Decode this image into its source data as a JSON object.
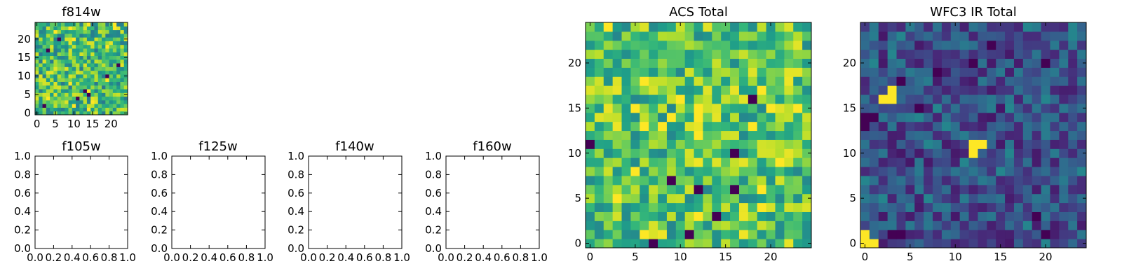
{
  "chart_data": [
    {
      "id": "f814w",
      "type": "heatmap",
      "title": "f814w",
      "colormap": "viridis",
      "grid_size": 25,
      "seed": 11,
      "low_level": 0.68,
      "spread": 0.28,
      "hotspots": [
        [
          3,
          17
        ],
        [
          19,
          10
        ],
        [
          13,
          6
        ],
        [
          14,
          5
        ],
        [
          11,
          4
        ],
        [
          6,
          20
        ],
        [
          2,
          2
        ],
        [
          22,
          13
        ]
      ],
      "x_ticks": [
        0,
        5,
        10,
        15,
        20
      ],
      "y_ticks": [
        0,
        5,
        10,
        15,
        20
      ],
      "xlim": [
        -0.5,
        24.5
      ],
      "ylim": [
        -0.5,
        24.5
      ]
    },
    {
      "id": "acs-total",
      "type": "heatmap",
      "title": "ACS Total",
      "colormap": "viridis",
      "grid_size": 25,
      "seed": 23,
      "low_level": 0.72,
      "spread": 0.26,
      "hotspots": [
        [
          18,
          16
        ],
        [
          9,
          7
        ],
        [
          12,
          6
        ],
        [
          16,
          6
        ],
        [
          11,
          1
        ],
        [
          7,
          0
        ],
        [
          0,
          11
        ],
        [
          16,
          10
        ],
        [
          14,
          3
        ]
      ],
      "x_ticks": [
        0,
        5,
        10,
        15,
        20
      ],
      "y_ticks": [
        0,
        5,
        10,
        15,
        20
      ],
      "xlim": [
        -0.5,
        24.5
      ],
      "ylim": [
        -0.5,
        24.5
      ]
    },
    {
      "id": "wfc3-ir-total",
      "type": "heatmap",
      "title": "WFC3 IR Total",
      "colormap": "viridis",
      "grid_size": 25,
      "seed": 37,
      "low_level": 0.24,
      "spread": 0.18,
      "bright": [
        [
          0,
          0
        ],
        [
          1,
          0
        ],
        [
          0,
          1
        ],
        [
          2,
          16
        ],
        [
          3,
          16
        ],
        [
          3,
          17
        ],
        [
          12,
          11
        ],
        [
          13,
          11
        ],
        [
          12,
          10
        ]
      ],
      "dark_cells": [
        [
          0,
          13
        ],
        [
          0,
          14
        ],
        [
          1,
          14
        ],
        [
          6,
          15
        ],
        [
          8,
          19
        ],
        [
          12,
          20
        ],
        [
          14,
          22
        ],
        [
          4,
          18
        ],
        [
          20,
          20
        ],
        [
          20,
          1
        ],
        [
          4,
          1
        ],
        [
          3,
          1
        ],
        [
          19,
          3
        ]
      ],
      "x_ticks": [
        0,
        5,
        10,
        15,
        20
      ],
      "y_ticks": [
        0,
        5,
        10,
        15,
        20
      ],
      "xlim": [
        -0.5,
        24.5
      ],
      "ylim": [
        -0.5,
        24.5
      ]
    },
    {
      "id": "f105w",
      "type": "heatmap",
      "title": "f105w",
      "empty": true,
      "x_ticks": [
        "0.0",
        "0.2",
        "0.4",
        "0.6",
        "0.8",
        "1.0"
      ],
      "y_ticks": [
        "0.0",
        "0.2",
        "0.4",
        "0.6",
        "0.8",
        "1.0"
      ],
      "xlim": [
        0,
        1
      ],
      "ylim": [
        0,
        1
      ]
    },
    {
      "id": "f125w",
      "type": "heatmap",
      "title": "f125w",
      "empty": true,
      "x_ticks": [
        "0.0",
        "0.2",
        "0.4",
        "0.6",
        "0.8",
        "1.0"
      ],
      "y_ticks": [
        "0.0",
        "0.2",
        "0.4",
        "0.6",
        "0.8",
        "1.0"
      ],
      "xlim": [
        0,
        1
      ],
      "ylim": [
        0,
        1
      ]
    },
    {
      "id": "f140w",
      "type": "heatmap",
      "title": "f140w",
      "empty": true,
      "x_ticks": [
        "0.0",
        "0.2",
        "0.4",
        "0.6",
        "0.8",
        "1.0"
      ],
      "y_ticks": [
        "0.0",
        "0.2",
        "0.4",
        "0.6",
        "0.8",
        "1.0"
      ],
      "xlim": [
        0,
        1
      ],
      "ylim": [
        0,
        1
      ]
    },
    {
      "id": "f160w",
      "type": "heatmap",
      "title": "f160w",
      "empty": true,
      "x_ticks": [
        "0.0",
        "0.2",
        "0.4",
        "0.6",
        "0.8",
        "1.0"
      ],
      "y_ticks": [
        "0.0",
        "0.2",
        "0.4",
        "0.6",
        "0.8",
        "1.0"
      ],
      "xlim": [
        0,
        1
      ],
      "ylim": [
        0,
        1
      ]
    }
  ]
}
